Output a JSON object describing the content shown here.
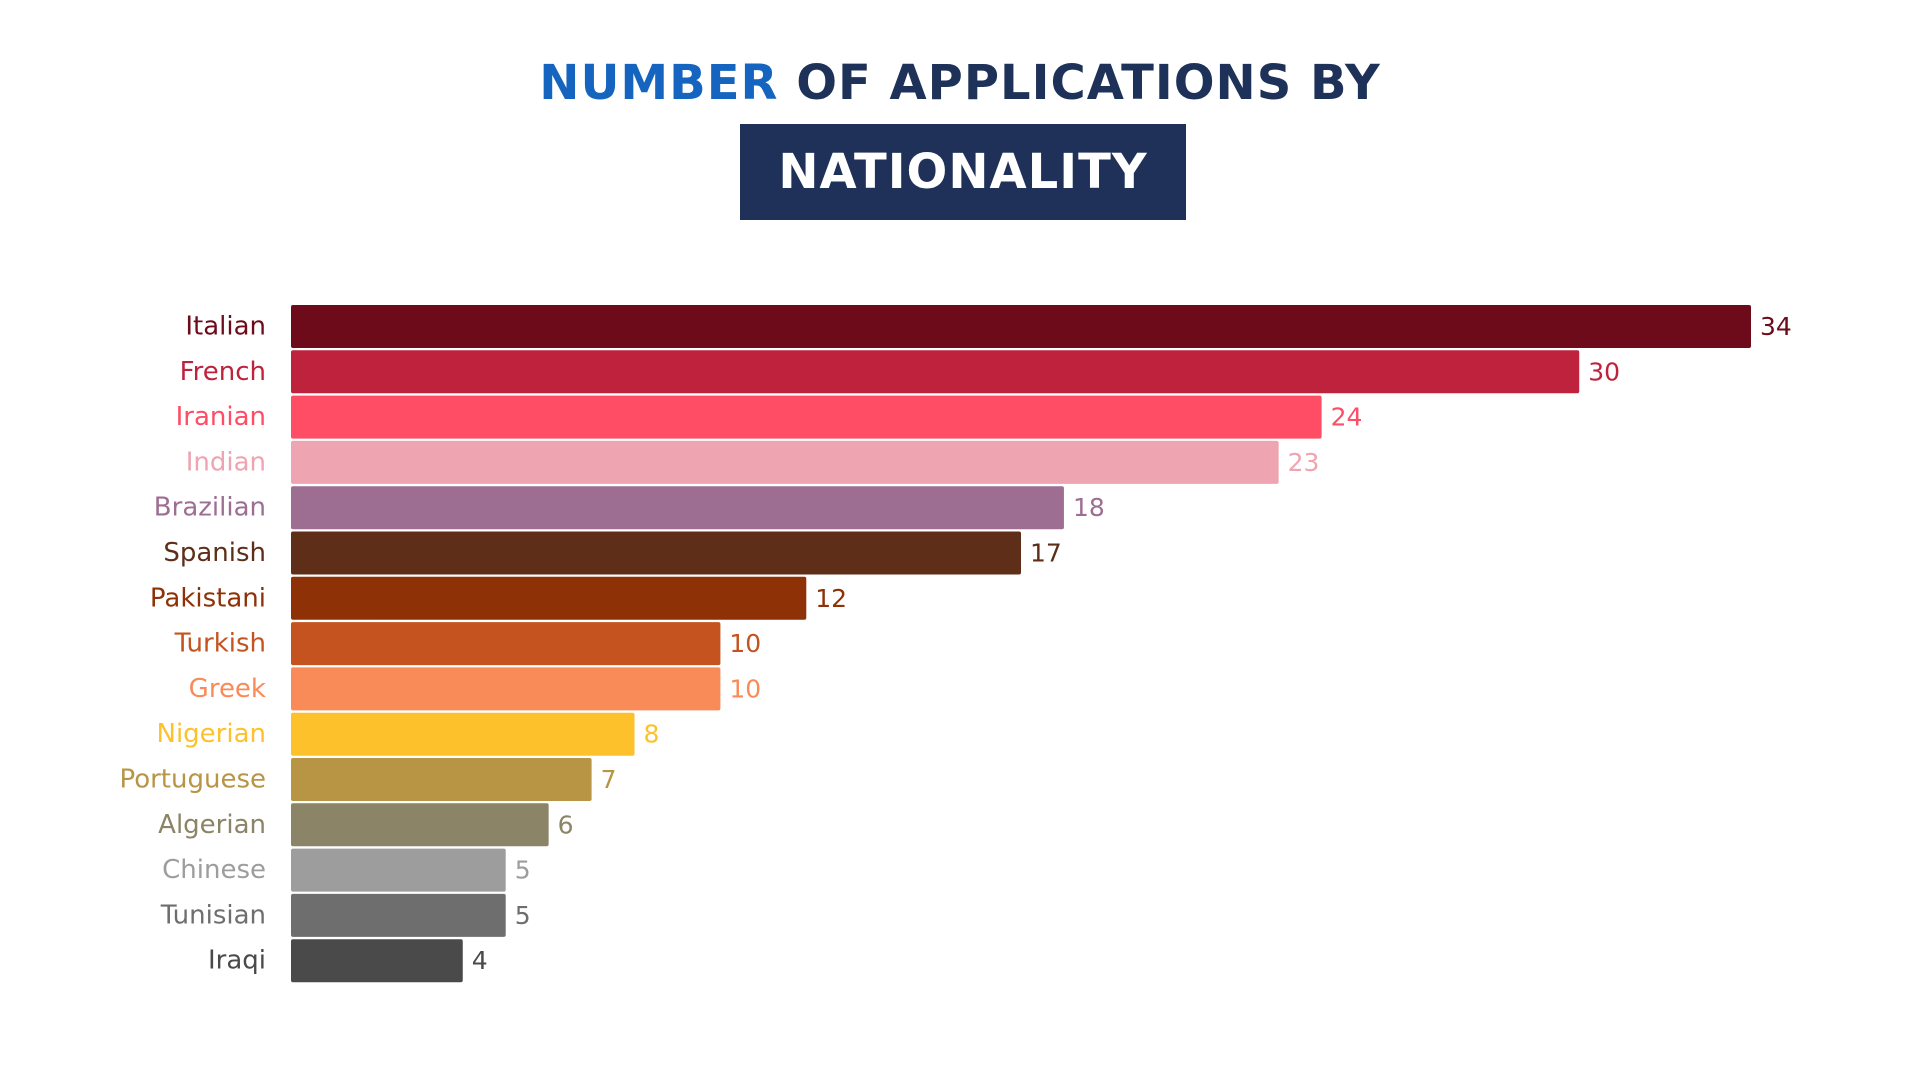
{
  "title": {
    "accent": "NUMBER",
    "rest": " OF APPLICATIONS BY",
    "boxed": "NATIONALITY"
  },
  "chart_data": {
    "type": "bar",
    "orientation": "horizontal",
    "title": "NUMBER OF APPLICATIONS BY NATIONALITY",
    "xlabel": "",
    "ylabel": "",
    "grid": false,
    "legend": "none",
    "xlim": [
      0,
      34
    ],
    "categories": [
      "Italian",
      "French",
      "Iranian",
      "Indian",
      "Brazilian",
      "Spanish",
      "Pakistani",
      "Turkish",
      "Greek",
      "Nigerian",
      "Portuguese",
      "Algerian",
      "Chinese",
      "Tunisian",
      "Iraqi"
    ],
    "values": [
      34,
      30,
      24,
      23,
      18,
      17,
      12,
      10,
      10,
      8,
      7,
      6,
      5,
      5,
      4
    ],
    "colors": [
      "#6e0b1a",
      "#be223c",
      "#ff4d66",
      "#eea4b1",
      "#9e6d92",
      "#5e2e18",
      "#8e3106",
      "#c4531f",
      "#f98b58",
      "#fdc12c",
      "#b89544",
      "#8c8466",
      "#9d9d9d",
      "#6e6e6e",
      "#4a4a4a"
    ]
  }
}
